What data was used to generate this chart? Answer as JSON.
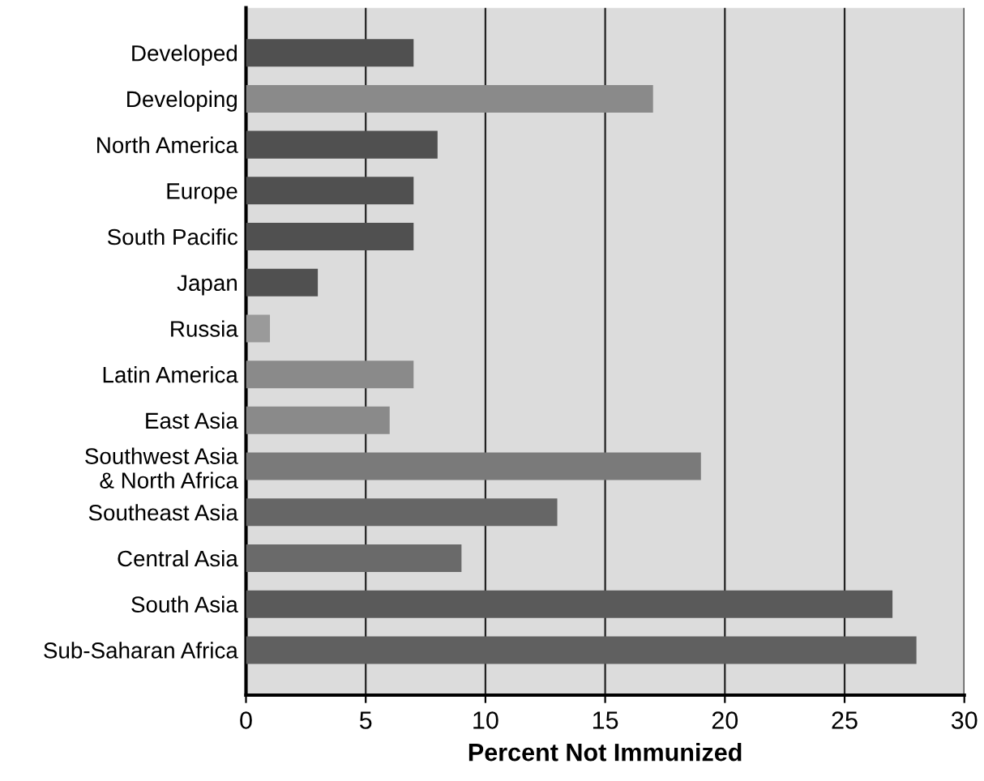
{
  "chart_data": {
    "type": "bar",
    "orientation": "horizontal",
    "xlabel": "Percent Not Immunized",
    "categories": [
      "Developed",
      "Developing",
      "North America",
      "Europe",
      "South Pacific",
      "Japan",
      "Russia",
      "Latin America",
      "East Asia",
      "Southwest Asia\n& North Africa",
      "Southeast Asia",
      "Central Asia",
      "South Asia",
      "Sub-Saharan Africa"
    ],
    "values": [
      7,
      17,
      8,
      7,
      7,
      3,
      1,
      7,
      6,
      19,
      13,
      9,
      27,
      28
    ],
    "colors": [
      "#505050",
      "#8a8a8a",
      "#505050",
      "#505050",
      "#505050",
      "#505050",
      "#9a9a9a",
      "#8a8a8a",
      "#8a8a8a",
      "#7a7a7a",
      "#666666",
      "#6a6a6a",
      "#5a5a5a",
      "#606060"
    ],
    "xlim": [
      0,
      30
    ],
    "xticks": [
      0,
      5,
      10,
      15,
      20,
      25,
      30
    ],
    "grid": "x"
  }
}
